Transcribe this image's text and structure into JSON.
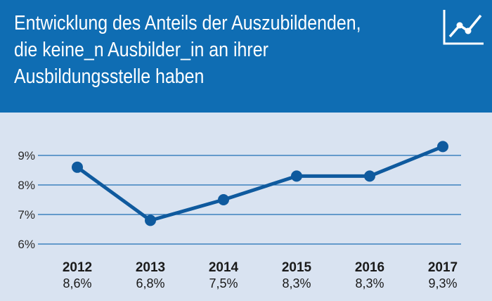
{
  "header": {
    "title_lines": [
      "Entwicklung des Anteils der Auszubildenden,",
      "die keine_n Ausbilder_in an ihrer",
      "Ausbildungsstelle haben"
    ],
    "icon": "trend-line-icon",
    "background_color": "#0f6db3"
  },
  "chart_data": {
    "type": "line",
    "title": "Entwicklung des Anteils der Auszubildenden, die keine_n Ausbilder_in an ihrer Ausbildungsstelle haben",
    "categories": [
      "2012",
      "2013",
      "2014",
      "2015",
      "2016",
      "2017"
    ],
    "values": [
      8.6,
      6.8,
      7.5,
      8.3,
      8.3,
      9.3
    ],
    "value_labels": [
      "8,6%",
      "6,8%",
      "7,5%",
      "8,3%",
      "8,3%",
      "9,3%"
    ],
    "y_ticks": [
      6,
      7,
      8,
      9
    ],
    "y_tick_labels": [
      "6%",
      "7%",
      "8%",
      "9%"
    ],
    "ylim": [
      6,
      9.5
    ],
    "grid": true,
    "line_color": "#0f5a9e",
    "grid_color": "#1f6fb5"
  }
}
